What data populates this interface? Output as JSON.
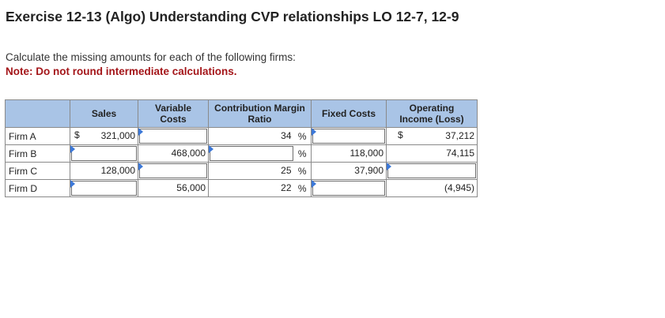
{
  "header": {
    "title": "Exercise 12-13 (Algo) Understanding CVP relationships LO 12-7, 12-9",
    "instruction": "Calculate the missing amounts for each of the following firms:",
    "note": "Note: Do not round intermediate calculations."
  },
  "table": {
    "columns": {
      "sales": "Sales",
      "variable_costs_1": "Variable",
      "variable_costs_2": "Costs",
      "cm_ratio_1": "Contribution Margin",
      "cm_ratio_2": "Ratio",
      "fixed_costs": "Fixed Costs",
      "op_income_1": "Operating",
      "op_income_2": "Income (Loss)"
    },
    "currency": "$",
    "percent": "%",
    "rows": [
      {
        "label": "Firm A",
        "sales": "321,000",
        "variable_costs": "",
        "cm_ratio": "34",
        "fixed_costs": "",
        "op_income": "37,212"
      },
      {
        "label": "Firm B",
        "sales": "",
        "variable_costs": "468,000",
        "cm_ratio": "",
        "fixed_costs": "118,000",
        "op_income": "74,115"
      },
      {
        "label": "Firm C",
        "sales": "128,000",
        "variable_costs": "",
        "cm_ratio": "25",
        "fixed_costs": "37,900",
        "op_income": ""
      },
      {
        "label": "Firm D",
        "sales": "",
        "variable_costs": "56,000",
        "cm_ratio": "22",
        "fixed_costs": "",
        "op_income": "(4,945)"
      }
    ]
  }
}
